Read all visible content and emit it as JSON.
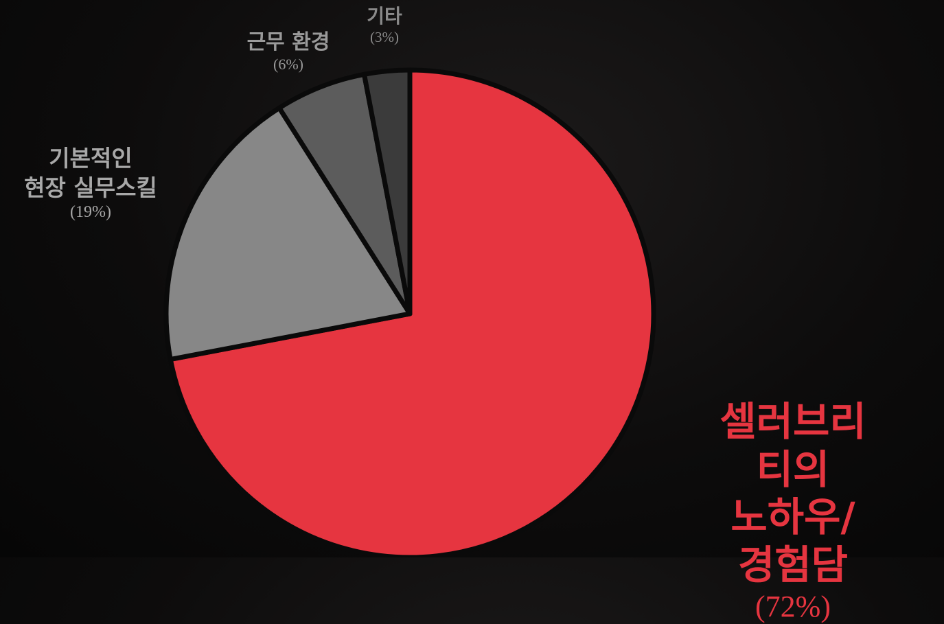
{
  "chart_data": {
    "type": "pie",
    "categories": [
      "셀러브리티의\n노하우/경험담",
      "기본적인\n현장 실무스킬",
      "근무 환경",
      "기타"
    ],
    "values": [
      72,
      19,
      6,
      3
    ],
    "value_labels": [
      "(72%)",
      "(19%)",
      "(6%)",
      "(3%)"
    ],
    "colors": [
      "#e63540",
      "#878787",
      "#5c5c5c",
      "#3b3b3b"
    ]
  }
}
